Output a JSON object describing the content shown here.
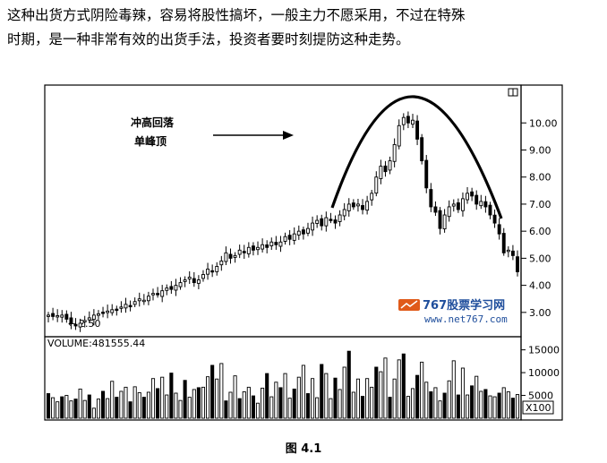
{
  "text": {
    "line1": "这种出货方式阴险毒辣，容易将股性搞坏，一般主力不愿采用，不过在特殊",
    "line2": "时期，是一种非常有效的出货手法，投资者要时刻提防这种走势。",
    "caption": "图 4.1"
  },
  "chart_data": [
    {
      "type": "candlestick",
      "annotation_lines": [
        "冲高回落",
        "单峰顶"
      ],
      "low_label": "2.50",
      "yticks": [
        3.0,
        4.0,
        5.0,
        6.0,
        7.0,
        8.0,
        9.0,
        10.0
      ],
      "ytick_labels": [
        "3.00",
        "4.00",
        "5.00",
        "6.00",
        "7.00",
        "8.00",
        "9.00",
        "10.00"
      ],
      "ylim": [
        2.3,
        11.1
      ],
      "watermark_title": "767股票学习网",
      "watermark_url": "www.net767.com",
      "closes": [
        2.9,
        2.85,
        2.88,
        2.9,
        2.75,
        2.6,
        2.5,
        2.6,
        2.7,
        2.8,
        2.9,
        2.95,
        3.0,
        3.05,
        3.1,
        3.1,
        3.2,
        3.3,
        3.25,
        3.4,
        3.5,
        3.45,
        3.6,
        3.7,
        3.65,
        3.8,
        3.9,
        3.85,
        4.0,
        4.1,
        4.2,
        4.3,
        4.1,
        4.2,
        4.4,
        4.6,
        4.5,
        4.7,
        4.9,
        5.2,
        5.0,
        5.1,
        5.3,
        5.2,
        5.4,
        5.3,
        5.4,
        5.5,
        5.4,
        5.6,
        5.5,
        5.6,
        5.8,
        5.7,
        5.9,
        6.0,
        5.9,
        6.1,
        6.3,
        6.4,
        6.2,
        6.5,
        6.4,
        6.3,
        6.6,
        6.8,
        7.0,
        6.9,
        7.0,
        6.8,
        7.1,
        7.4,
        8.0,
        8.4,
        8.2,
        8.6,
        9.2,
        9.9,
        10.2,
        10.0,
        10.1,
        9.4,
        8.6,
        7.6,
        6.9,
        6.7,
        6.1,
        6.6,
        6.9,
        7.0,
        6.8,
        7.2,
        7.4,
        7.3,
        7.0,
        7.1,
        6.9,
        6.6,
        6.3,
        5.9,
        5.2,
        5.3,
        5.1,
        4.5
      ],
      "volume_label": "VOLUME:481555.44",
      "volume_yticks": [
        5000,
        10000,
        15000
      ],
      "volume_ytick_labels": [
        "5000",
        "10000",
        "15000"
      ],
      "volume_unit": "X100",
      "volumes": [
        5400,
        4500,
        3600,
        4700,
        5000,
        3800,
        4200,
        6400,
        3900,
        5100,
        2200,
        4200,
        5900,
        4300,
        8100,
        4600,
        5900,
        6800,
        3600,
        6900,
        5600,
        4600,
        5700,
        8700,
        6500,
        9000,
        5100,
        9900,
        5500,
        3900,
        8300,
        4600,
        6300,
        6700,
        6800,
        9100,
        11600,
        8600,
        12000,
        3800,
        5700,
        9300,
        4300,
        5800,
        6800,
        4900,
        3300,
        6600,
        9800,
        4700,
        7900,
        6700,
        9800,
        4400,
        6400,
        9000,
        11600,
        5400,
        8700,
        4500,
        11800,
        9800,
        4300,
        8800,
        6300,
        11200,
        14700,
        5700,
        8600,
        4800,
        8700,
        6800,
        11200,
        10200,
        13200,
        4600,
        8600,
        12800,
        14100,
        4800,
        6500,
        9400,
        12300,
        7900,
        5800,
        6700,
        3800,
        5500,
        8200,
        12600,
        5100,
        11000,
        5100,
        7100,
        9200,
        5900,
        6300,
        4900,
        4700,
        5500,
        6700,
        5800,
        4400,
        5200
      ]
    }
  ]
}
